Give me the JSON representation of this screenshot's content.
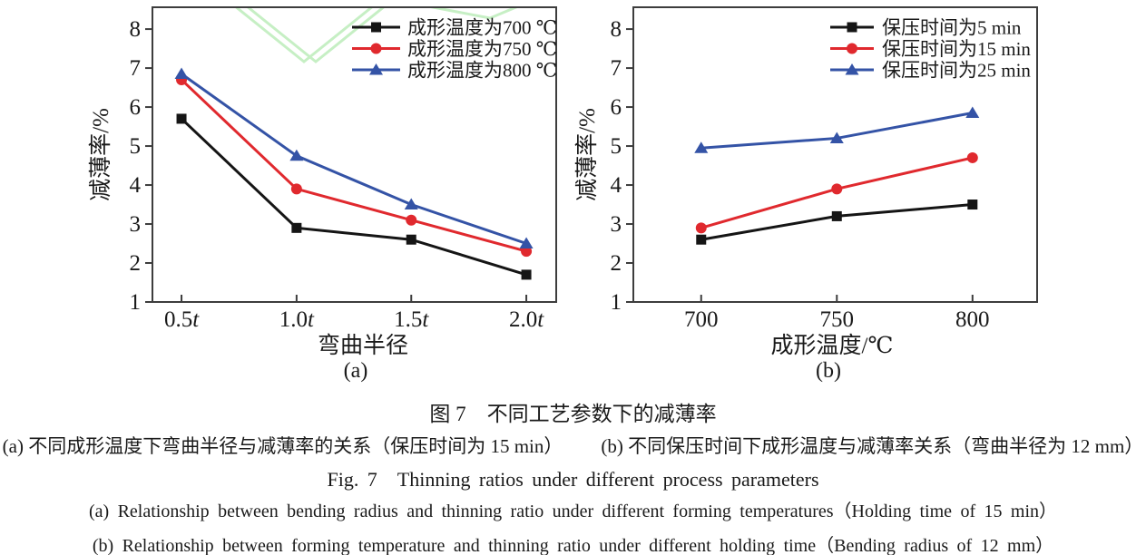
{
  "figure": {
    "captions": {
      "zh_title": "图 7　不同工艺参数下的减薄率",
      "zh_sub_a": "(a) 不同成形温度下弯曲半径与减薄率的关系（保压时间为 15 min）",
      "zh_sub_b": "(b) 不同保压时间下成形温度与减薄率关系（弯曲半径为 12 mm）",
      "en_title": "Fig. 7　Thinning ratios under different process parameters",
      "en_sub_a": "(a) Relationship between bending radius and thinning ratio under different forming temperatures（Holding time of 15 min）",
      "en_sub_b": "(b) Relationship between forming temperature and thinning ratio under different holding time（Bending radius of 12 mm）"
    },
    "watermark_color": "#c6efc4",
    "axis_color": "#3d3d3d"
  },
  "chart_data": [
    {
      "id": "a",
      "type": "line",
      "subplot_label": "(a)",
      "xlabel": "弯曲半径",
      "ylabel": "减薄率/%",
      "categories": [
        "0.5t",
        "1.0t",
        "1.5t",
        "2.0t"
      ],
      "y_ticks": [
        1,
        2,
        3,
        4,
        5,
        6,
        7,
        8
      ],
      "ylim": [
        1,
        8.56
      ],
      "grid": false,
      "legend_position": "inside-top-right",
      "series": [
        {
          "name": "成形温度为700 ℃",
          "marker": "square",
          "color": "#151515",
          "values": [
            5.7,
            2.9,
            2.6,
            1.7
          ]
        },
        {
          "name": "成形温度为750 ℃",
          "marker": "circle",
          "color": "#e0292e",
          "values": [
            6.7,
            3.9,
            3.1,
            2.3
          ]
        },
        {
          "name": "成形温度为800 ℃",
          "marker": "triangle",
          "color": "#3453a6",
          "values": [
            6.85,
            4.75,
            3.5,
            2.5
          ]
        }
      ]
    },
    {
      "id": "b",
      "type": "line",
      "subplot_label": "(b)",
      "xlabel": "成形温度/℃",
      "ylabel": "减薄率/%",
      "categories": [
        "700",
        "750",
        "800"
      ],
      "y_ticks": [
        1,
        2,
        3,
        4,
        5,
        6,
        7,
        8
      ],
      "ylim": [
        1,
        8.56
      ],
      "grid": false,
      "legend_position": "inside-top-right",
      "series": [
        {
          "name": "保压时间为5 min",
          "marker": "square",
          "color": "#151515",
          "values": [
            2.6,
            3.2,
            3.5
          ]
        },
        {
          "name": "保压时间为15 min",
          "marker": "circle",
          "color": "#e0292e",
          "values": [
            2.9,
            3.9,
            4.7
          ]
        },
        {
          "name": "保压时间为25 min",
          "marker": "triangle",
          "color": "#3453a6",
          "values": [
            4.95,
            5.2,
            5.85
          ]
        }
      ]
    }
  ]
}
